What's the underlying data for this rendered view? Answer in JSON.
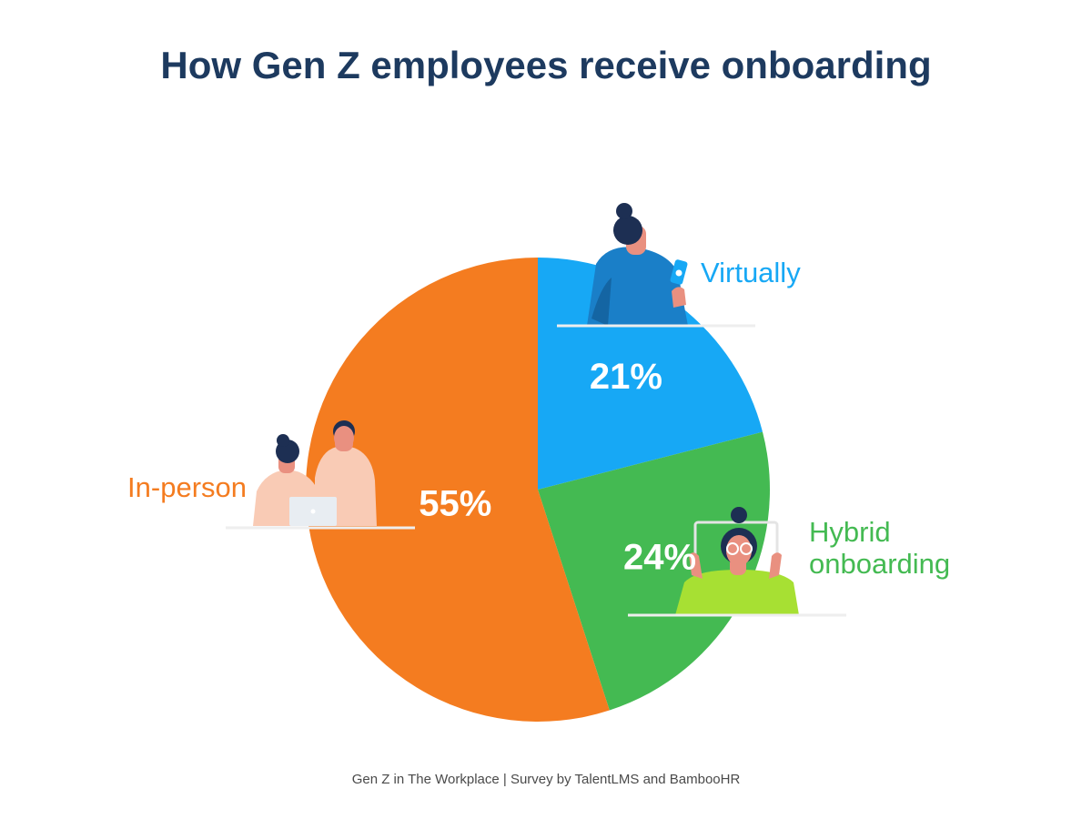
{
  "title": "How Gen Z employees receive onboarding",
  "footer": "Gen Z in The Workplace | Survey by TalentLMS and BambooHR",
  "chart_data": {
    "type": "pie",
    "title": "How Gen Z employees receive onboarding",
    "slices": [
      {
        "label": "Virtually",
        "value": 21,
        "value_label": "21%",
        "color": "#17a8f5",
        "label_color": "#17a8f5"
      },
      {
        "label": "Hybrid onboarding",
        "value": 24,
        "value_label": "24%",
        "color": "#44ba52",
        "label_color": "#44ba52"
      },
      {
        "label": "In-person",
        "value": 55,
        "value_label": "55%",
        "color": "#f47c20",
        "label_color": "#f47c20"
      }
    ],
    "start": "12 o'clock",
    "direction": "clockwise",
    "legend": "none (labels beside slices)"
  },
  "illustrations": {
    "virtually": "person-with-phone-icon",
    "hybrid": "person-video-call-icon",
    "in_person": "two-people-laptop-icon"
  }
}
